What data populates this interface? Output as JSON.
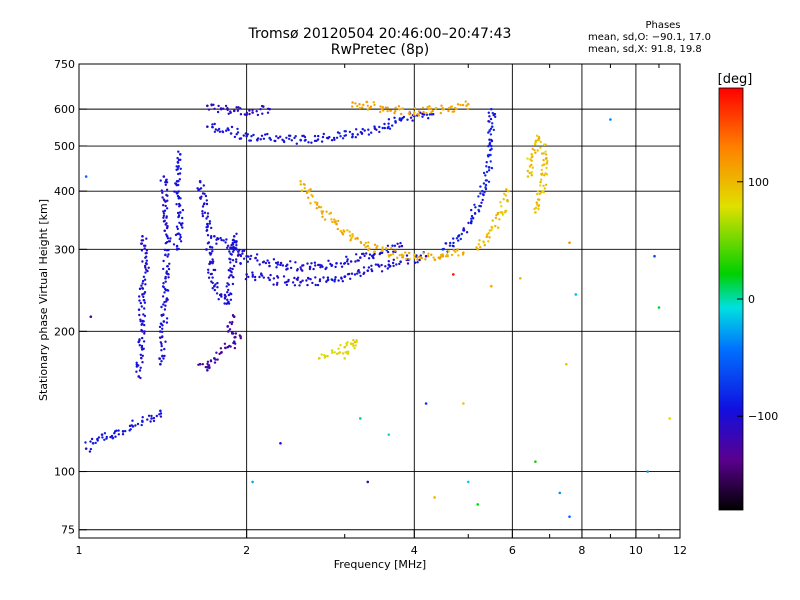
{
  "header": {
    "title": "Tromsø 20120504 20:46:00–20:47:43",
    "subtitle": "RwPretec (8p)"
  },
  "phase_stats": {
    "heading": "Phases",
    "line_o": "mean, sd,O: −90.1, 17.0",
    "line_x": "mean, sd,X:  91.8, 19.8"
  },
  "colorbar": {
    "label": "[deg]",
    "ticks": [
      {
        "v": 100,
        "label": "100"
      },
      {
        "v": 0,
        "label": "0"
      },
      {
        "v": -100,
        "label": "−100"
      }
    ],
    "range": [
      -180,
      180
    ]
  },
  "chart_data": {
    "type": "scatter",
    "title": "Tromsø 20120504 20:46:00–20:47:43",
    "subtitle": "RwPretec (8p)",
    "xlabel": "Frequency [MHz]",
    "ylabel": "Stationary phase Virtual Height [km]",
    "xscale": "log",
    "yscale": "log",
    "xlim": [
      1,
      12
    ],
    "ylim": [
      72,
      750
    ],
    "xticks": [
      1,
      2,
      4,
      6,
      8,
      10,
      12
    ],
    "xtick_labels": [
      "1",
      "2",
      "4",
      "6",
      "8",
      "10",
      "12"
    ],
    "major_x_grid": [
      2,
      4,
      6,
      8,
      10
    ],
    "minor_x_ticks": [
      3,
      5,
      7,
      9,
      11
    ],
    "yticks": [
      75,
      100,
      200,
      300,
      400,
      500,
      600,
      750
    ],
    "ytick_labels": [
      "75",
      "100",
      "200",
      "300",
      "400",
      "500",
      "600",
      "750"
    ],
    "grid": true,
    "color_encoding": "phase [deg]",
    "series": [
      {
        "id": "o-trace-low",
        "phase": -95,
        "spread": 15,
        "points": [
          [
            1.03,
            112
          ],
          [
            1.06,
            115
          ],
          [
            1.1,
            120
          ],
          [
            1.15,
            118
          ],
          [
            1.2,
            122
          ],
          [
            1.25,
            125
          ],
          [
            1.3,
            128
          ],
          [
            1.35,
            130
          ],
          [
            1.4,
            135
          ]
        ]
      },
      {
        "id": "o-col-1.3",
        "phase": -100,
        "spread": 12,
        "points": [
          [
            1.28,
            160
          ],
          [
            1.3,
            200
          ],
          [
            1.3,
            240
          ],
          [
            1.32,
            280
          ],
          [
            1.3,
            320
          ]
        ]
      },
      {
        "id": "o-col-1.45",
        "phase": -100,
        "spread": 12,
        "points": [
          [
            1.4,
            170
          ],
          [
            1.42,
            210
          ],
          [
            1.43,
            260
          ],
          [
            1.44,
            320
          ],
          [
            1.43,
            380
          ],
          [
            1.42,
            430
          ]
        ]
      },
      {
        "id": "o-col-1.5",
        "phase": -95,
        "spread": 10,
        "points": [
          [
            1.5,
            300
          ],
          [
            1.52,
            360
          ],
          [
            1.5,
            420
          ],
          [
            1.52,
            480
          ]
        ]
      },
      {
        "id": "o-col-1.7",
        "phase": -100,
        "spread": 12,
        "points": [
          [
            1.65,
            420
          ],
          [
            1.7,
            340
          ],
          [
            1.72,
            280
          ],
          [
            1.75,
            250
          ],
          [
            1.8,
            240
          ],
          [
            1.85,
            230
          ],
          [
            1.9,
            320
          ],
          [
            1.95,
            280
          ]
        ]
      },
      {
        "id": "o-low-blob",
        "phase": -125,
        "spread": 15,
        "points": [
          [
            1.65,
            170
          ],
          [
            1.7,
            165
          ],
          [
            1.75,
            175
          ],
          [
            1.8,
            180
          ],
          [
            1.85,
            185
          ],
          [
            1.9,
            190
          ],
          [
            1.95,
            195
          ],
          [
            1.85,
            205
          ],
          [
            1.9,
            215
          ]
        ]
      },
      {
        "id": "o-band-540",
        "phase": -95,
        "spread": 15,
        "points": [
          [
            1.7,
            550
          ],
          [
            1.85,
            545
          ],
          [
            2.0,
            525
          ],
          [
            2.2,
            520
          ],
          [
            2.5,
            515
          ],
          [
            2.8,
            520
          ],
          [
            3.1,
            530
          ],
          [
            3.4,
            545
          ],
          [
            3.7,
            565
          ],
          [
            4.0,
            580
          ],
          [
            4.3,
            585
          ]
        ]
      },
      {
        "id": "o-upper-left",
        "phase": -110,
        "spread": 10,
        "points": [
          [
            1.7,
            610
          ],
          [
            1.8,
            600
          ],
          [
            1.9,
            595
          ],
          [
            2.05,
            590
          ],
          [
            2.2,
            600
          ]
        ]
      },
      {
        "id": "o-band-260",
        "phase": -100,
        "spread": 15,
        "points": [
          [
            2.0,
            265
          ],
          [
            2.2,
            258
          ],
          [
            2.5,
            255
          ],
          [
            2.8,
            258
          ],
          [
            3.0,
            262
          ],
          [
            3.3,
            270
          ],
          [
            3.6,
            278
          ],
          [
            3.9,
            285
          ],
          [
            4.2,
            290
          ]
        ]
      },
      {
        "id": "o-band-280",
        "phase": -98,
        "spread": 15,
        "points": [
          [
            1.75,
            320
          ],
          [
            2.0,
            290
          ],
          [
            2.3,
            278
          ],
          [
            2.6,
            275
          ],
          [
            2.9,
            280
          ],
          [
            3.2,
            288
          ],
          [
            3.5,
            295
          ],
          [
            3.8,
            305
          ]
        ]
      },
      {
        "id": "o-rise-5.5",
        "phase": -90,
        "spread": 15,
        "points": [
          [
            4.5,
            300
          ],
          [
            4.8,
            320
          ],
          [
            5.1,
            350
          ],
          [
            5.3,
            400
          ],
          [
            5.45,
            450
          ],
          [
            5.5,
            500
          ],
          [
            5.52,
            550
          ],
          [
            5.5,
            600
          ]
        ]
      },
      {
        "id": "x-band-290",
        "phase": 105,
        "spread": 12,
        "points": [
          [
            2.5,
            420
          ],
          [
            2.7,
            370
          ],
          [
            2.9,
            340
          ],
          [
            3.1,
            320
          ],
          [
            3.3,
            305
          ],
          [
            3.5,
            298
          ],
          [
            3.8,
            292
          ],
          [
            4.1,
            288
          ],
          [
            4.5,
            290
          ],
          [
            4.9,
            295
          ]
        ]
      },
      {
        "id": "x-rise-5.7",
        "phase": 95,
        "spread": 15,
        "points": [
          [
            5.2,
            300
          ],
          [
            5.5,
            330
          ],
          [
            5.75,
            360
          ],
          [
            5.9,
            400
          ]
        ]
      },
      {
        "id": "x-arc-620",
        "phase": 110,
        "spread": 10,
        "points": [
          [
            3.1,
            620
          ],
          [
            3.5,
            600
          ],
          [
            4.0,
            590
          ],
          [
            4.5,
            600
          ],
          [
            5.0,
            615
          ]
        ]
      },
      {
        "id": "x-col-6.7",
        "phase": 95,
        "spread": 15,
        "points": [
          [
            6.4,
            430
          ],
          [
            6.5,
            480
          ],
          [
            6.7,
            520
          ],
          [
            6.9,
            470
          ],
          [
            6.8,
            400
          ],
          [
            6.6,
            360
          ]
        ]
      },
      {
        "id": "x-blob-180",
        "phase": 85,
        "spread": 10,
        "points": [
          [
            2.7,
            175
          ],
          [
            2.85,
            180
          ],
          [
            3.0,
            185
          ],
          [
            3.15,
            190
          ],
          [
            3.0,
            175
          ]
        ]
      },
      {
        "id": "scatter-noise",
        "phase": 0,
        "spread": 180,
        "points": [
          [
            1.05,
            215
          ],
          [
            1.03,
            430
          ],
          [
            2.05,
            95
          ],
          [
            2.3,
            115
          ],
          [
            3.3,
            95
          ],
          [
            4.35,
            88
          ],
          [
            4.2,
            140
          ],
          [
            5.0,
            95
          ],
          [
            5.2,
            85
          ],
          [
            6.6,
            105
          ],
          [
            7.3,
            90
          ],
          [
            7.6,
            80
          ],
          [
            10.5,
            100
          ],
          [
            11.0,
            225
          ],
          [
            11.5,
            130
          ],
          [
            7.8,
            240
          ],
          [
            7.5,
            170
          ],
          [
            9.0,
            570
          ],
          [
            4.9,
            140
          ],
          [
            4.7,
            265
          ],
          [
            5.5,
            250
          ],
          [
            6.2,
            260
          ],
          [
            3.2,
            130
          ],
          [
            3.6,
            120
          ],
          [
            7.6,
            310
          ],
          [
            10.8,
            290
          ]
        ]
      }
    ]
  }
}
